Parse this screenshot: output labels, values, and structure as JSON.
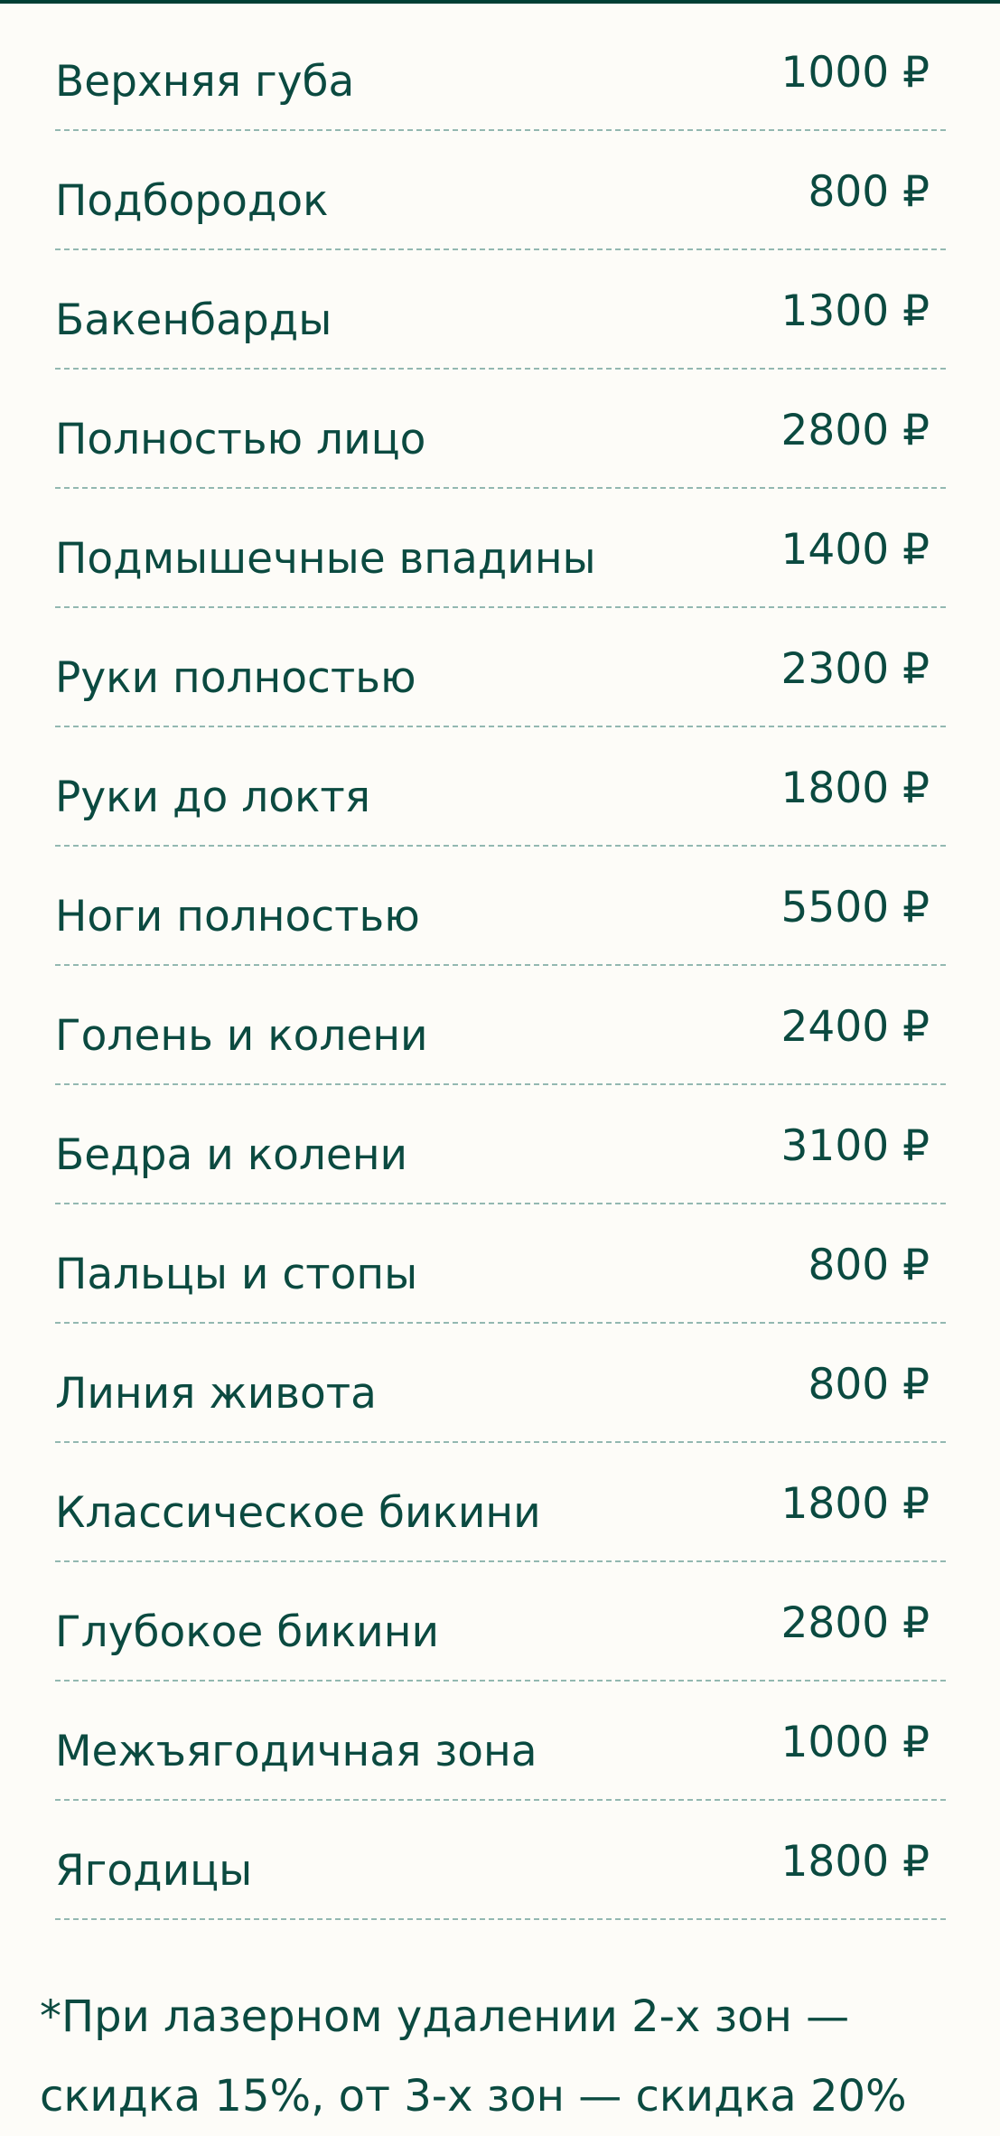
{
  "colors": {
    "text": "#0b4a40",
    "divider": "#93b8b1",
    "background": "#fdfcf8",
    "top_border": "#003f35"
  },
  "items": [
    {
      "name": "Верхняя губа",
      "price": "1000 ₽"
    },
    {
      "name": "Подбородок",
      "price": "800 ₽"
    },
    {
      "name": "Бакенбарды",
      "price": "1300 ₽"
    },
    {
      "name": "Полностью лицо",
      "price": "2800 ₽"
    },
    {
      "name": "Подмышечные впадины",
      "price": "1400 ₽"
    },
    {
      "name": "Руки полностью",
      "price": "2300 ₽"
    },
    {
      "name": "Руки до локтя",
      "price": "1800 ₽"
    },
    {
      "name": "Ноги полностью",
      "price": "5500 ₽"
    },
    {
      "name": "Голень и колени",
      "price": "2400 ₽"
    },
    {
      "name": "Бедра и колени",
      "price": "3100 ₽"
    },
    {
      "name": "Пальцы и стопы",
      "price": "800 ₽"
    },
    {
      "name": "Линия живота",
      "price": "800 ₽"
    },
    {
      "name": "Классическое бикини",
      "price": "1800 ₽"
    },
    {
      "name": "Глубокое бикини",
      "price": "2800 ₽"
    },
    {
      "name": "Межъягодичная зона",
      "price": "1000 ₽"
    },
    {
      "name": "Ягодицы",
      "price": "1800 ₽"
    }
  ],
  "footnote": "*При лазерном удалении 2-х зон — скидка 15%, от 3-х зон — скидка 20%"
}
